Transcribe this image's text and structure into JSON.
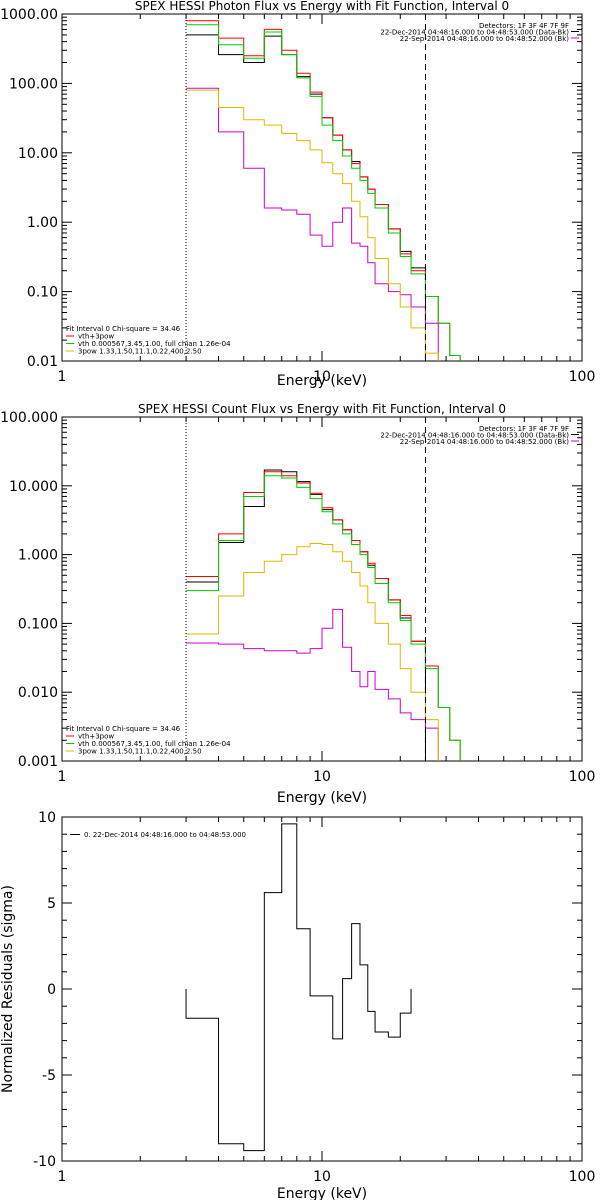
{
  "chart_data": [
    {
      "type": "line",
      "title": "SPEX HESSI Photon Flux vs Energy with Fit Function, Interval 0",
      "xlabel": "Energy (keV)",
      "ylabel": "",
      "xscale": "log",
      "yscale": "log",
      "xlim": [
        1,
        100
      ],
      "ylim": [
        0.01,
        1000
      ],
      "x_tick_labels": [
        "1",
        "10",
        "100"
      ],
      "y_tick_labels": [
        "0.01",
        "0.10",
        "1.00",
        "10.00",
        "100.00",
        "1000.00"
      ],
      "vlines": [
        {
          "x": 3,
          "style": "dotted"
        },
        {
          "x": 25,
          "style": "dashed"
        }
      ],
      "header": [
        "Detectors: 1F 3F 4F 7F 9F",
        "22-Dec-2014 04:48:16.000 to 04:48:53.000 (Data-Bk)",
        "22-Sep-2014 04:48:16.000 to 04:48:52.000 (Bk)"
      ],
      "legend": [
        "Fit Interval 0   Chi-square = 34.46",
        "vth+3pow",
        "vth 0.000567,3.45,1.00, full chian 1.26e-04",
        "3pow 1.33,1.50,11.1,0.22,400,2.50"
      ],
      "legend_position": "bottom-left",
      "edges": [
        3,
        4,
        5,
        6,
        7,
        8,
        9,
        10,
        11,
        12,
        13,
        14,
        15,
        16,
        18,
        20,
        22,
        25,
        28,
        31,
        34
      ],
      "series": [
        {
          "name": "Data-Bk",
          "color": "#000000",
          "values": [
            500,
            260,
            200,
            480,
            260,
            125,
            70,
            32,
            18,
            11,
            7.5,
            4.5,
            3,
            1.8,
            0.8,
            0.38,
            0.22,
            null,
            null,
            null
          ]
        },
        {
          "name": "Bk",
          "color": "#cc00cc",
          "values": [
            85,
            20,
            6,
            1.6,
            1.5,
            1.3,
            0.65,
            0.45,
            1.0,
            1.6,
            0.5,
            0.45,
            0.26,
            0.13,
            0.1,
            0.09,
            0.06,
            0.035,
            null,
            null
          ]
        },
        {
          "name": "vth+3pow",
          "color": "#ff0000",
          "values": [
            800,
            450,
            250,
            600,
            300,
            140,
            75,
            32,
            18,
            11,
            7,
            4.5,
            3,
            1.8,
            0.8,
            0.35,
            0.2,
            0.085,
            0.035,
            0.012
          ]
        },
        {
          "name": "vth",
          "color": "#00cc00",
          "values": [
            700,
            360,
            230,
            550,
            260,
            120,
            65,
            25,
            15,
            9,
            6,
            4,
            2.6,
            1.6,
            0.7,
            0.32,
            0.18,
            0.085,
            0.035,
            0.012
          ]
        },
        {
          "name": "3pow",
          "color": "#ddbb00",
          "values": [
            80,
            45,
            30,
            25,
            19,
            15,
            11,
            7.2,
            5,
            3.6,
            2,
            1.2,
            0.6,
            0.3,
            0.13,
            0.06,
            0.03,
            0.013,
            null,
            null
          ]
        }
      ]
    },
    {
      "type": "line",
      "title": "SPEX HESSI Count Flux vs Energy with Fit Function, Interval 0",
      "xlabel": "Energy (keV)",
      "ylabel": "",
      "xscale": "log",
      "yscale": "log",
      "xlim": [
        1,
        100
      ],
      "ylim": [
        0.001,
        100
      ],
      "x_tick_labels": [
        "1",
        "10",
        "100"
      ],
      "y_tick_labels": [
        "0.001",
        "0.010",
        "0.100",
        "1.000",
        "10.000",
        "100.000"
      ],
      "vlines": [
        {
          "x": 3,
          "style": "dotted"
        },
        {
          "x": 25,
          "style": "dashed"
        }
      ],
      "header": [
        "Detectors: 1F 3F 4F 7F 9F",
        "22-Dec-2014 04:48:16.000 to 04:48:53.000 (Data-Bk)",
        "22-Sep-2014 04:48:16.000 to 04:48:52.000 (Bk)"
      ],
      "legend": [
        "Fit Interval 0   Chi-square = 34.46",
        "vth+3pow",
        "vth 0.000567,3.45,1.00, full chian 1.26e-04",
        "3pow 1.33,1.50,11.1,0.22,400,2.50"
      ],
      "legend_position": "bottom-left",
      "edges": [
        3,
        4,
        5,
        6,
        7,
        8,
        9,
        10,
        11,
        12,
        13,
        14,
        15,
        16,
        18,
        20,
        22,
        25,
        28,
        31,
        34
      ],
      "series": [
        {
          "name": "Data-Bk",
          "color": "#000000",
          "values": [
            0.4,
            1.5,
            5,
            17,
            16,
            11.5,
            7.5,
            4.5,
            3.2,
            2.3,
            1.6,
            1.1,
            0.7,
            0.45,
            0.22,
            0.12,
            0.055,
            null,
            null,
            null
          ]
        },
        {
          "name": "Bk",
          "color": "#cc00cc",
          "values": [
            0.052,
            0.05,
            0.043,
            0.04,
            0.04,
            0.037,
            0.043,
            0.085,
            0.16,
            0.045,
            0.02,
            0.012,
            0.02,
            0.011,
            0.008,
            0.005,
            0.004,
            0.003,
            null,
            null
          ]
        },
        {
          "name": "vth+3pow",
          "color": "#ff0000",
          "values": [
            0.48,
            2.0,
            8,
            16,
            14,
            11,
            7.8,
            4.8,
            3.2,
            2.3,
            1.6,
            1.1,
            0.75,
            0.45,
            0.22,
            0.13,
            0.055,
            0.024,
            0.006,
            0.002
          ]
        },
        {
          "name": "vth",
          "color": "#00cc00",
          "values": [
            0.3,
            1.6,
            7,
            14,
            13,
            9.5,
            6.5,
            4.2,
            2.8,
            2.0,
            1.4,
            1.0,
            0.65,
            0.38,
            0.2,
            0.11,
            0.05,
            0.022,
            0.006,
            0.002
          ]
        },
        {
          "name": "3pow",
          "color": "#ddbb00",
          "values": [
            0.07,
            0.25,
            0.55,
            0.8,
            1.0,
            1.3,
            1.45,
            1.4,
            1.1,
            0.8,
            0.55,
            0.35,
            0.2,
            0.1,
            0.05,
            0.022,
            0.01,
            0.004,
            null,
            null
          ]
        }
      ]
    },
    {
      "type": "line",
      "title": "",
      "xlabel": "Energy (keV)",
      "ylabel": "Normalized Residuals (sigma)",
      "xscale": "log",
      "xlim": [
        1,
        100
      ],
      "ylim": [
        -10,
        10
      ],
      "x_tick_labels": [
        "1",
        "10",
        "100"
      ],
      "y_tick_labels": [
        "-10",
        "-5",
        "0",
        "5",
        "10"
      ],
      "legend": [
        "0. 22-Dec-2014 04:48:16.000 to 04:48:53.000"
      ],
      "legend_position": "top-left",
      "edges": [
        3,
        4,
        5,
        6,
        7,
        8,
        9,
        10,
        11,
        12,
        13,
        14,
        15,
        16,
        18,
        20,
        22,
        25
      ],
      "series": [
        {
          "name": "",
          "color": "#000000",
          "values": [
            -1.7,
            -9.0,
            -9.4,
            5.6,
            9.6,
            3.5,
            -0.4,
            -0.4,
            -2.9,
            0.6,
            3.8,
            1.4,
            -1.3,
            -2.5,
            -2.8,
            -1.4,
            null
          ]
        }
      ]
    }
  ]
}
